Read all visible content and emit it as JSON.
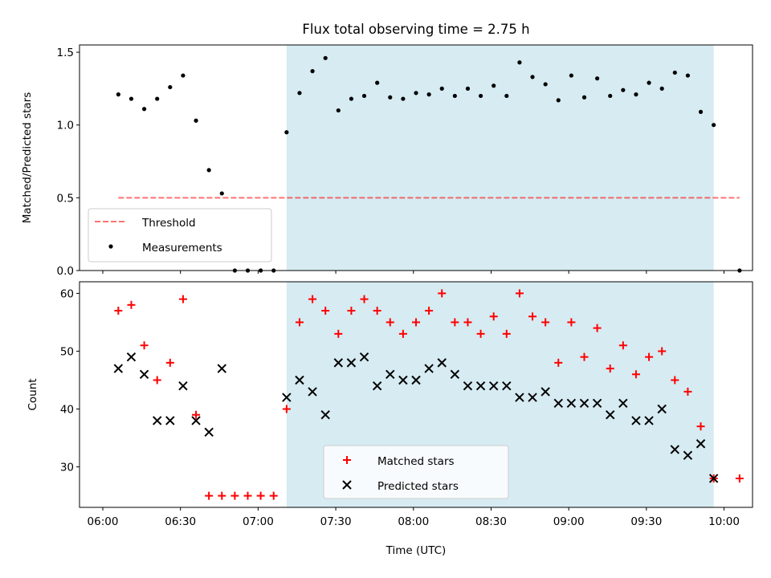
{
  "chart_data": [
    {
      "type": "scatter",
      "title": "Flux total observing time = 2.75 h",
      "xlabel": "",
      "ylabel": "Matched/Predicted stars",
      "xlim": [
        -9,
        251
      ],
      "ylim": [
        0,
        1.55
      ],
      "yticks": [
        0.0,
        0.5,
        1.0,
        1.5
      ],
      "ytick_labels": [
        "0.0",
        "0.5",
        "1.0",
        "1.5"
      ],
      "shaded_region": {
        "x": [
          71,
          236
        ],
        "color": "#add8e6"
      },
      "threshold": {
        "name": "Threshold",
        "value": 0.5,
        "x": [
          6,
          246
        ],
        "color": "#ff0000"
      },
      "series": [
        {
          "name": "Measurements",
          "marker": "dot",
          "color": "#000000",
          "x": [
            6,
            11,
            16,
            21,
            26,
            31,
            36,
            41,
            46,
            51,
            56,
            61,
            66,
            71,
            76,
            81,
            86,
            91,
            96,
            101,
            106,
            111,
            116,
            121,
            126,
            131,
            136,
            141,
            146,
            151,
            156,
            161,
            166,
            171,
            176,
            181,
            186,
            191,
            196,
            201,
            206,
            211,
            216,
            221,
            226,
            231,
            236,
            246
          ],
          "y": [
            1.21,
            1.18,
            1.11,
            1.18,
            1.26,
            1.34,
            1.03,
            0.69,
            0.53,
            0,
            0,
            0,
            0,
            0.95,
            1.22,
            1.37,
            1.46,
            1.1,
            1.18,
            1.2,
            1.29,
            1.19,
            1.18,
            1.22,
            1.21,
            1.25,
            1.2,
            1.25,
            1.2,
            1.27,
            1.2,
            1.43,
            1.33,
            1.28,
            1.17,
            1.34,
            1.19,
            1.32,
            1.2,
            1.24,
            1.21,
            1.29,
            1.25,
            1.36,
            1.34,
            1.09,
            1.0,
            0
          ]
        }
      ],
      "legend": {
        "entries": [
          "Threshold",
          "Measurements"
        ],
        "placement": "lower-left"
      }
    },
    {
      "type": "scatter",
      "title": "",
      "xlabel": "Time (UTC)",
      "ylabel": "Count",
      "xlim": [
        -9,
        251
      ],
      "ylim": [
        23,
        62
      ],
      "yticks": [
        30,
        40,
        50,
        60
      ],
      "ytick_labels": [
        "30",
        "40",
        "50",
        "60"
      ],
      "xticks": [
        0,
        30,
        60,
        90,
        120,
        150,
        180,
        210,
        240
      ],
      "xtick_labels": [
        "06:00",
        "06:30",
        "07:00",
        "07:30",
        "08:00",
        "08:30",
        "09:00",
        "09:30",
        "10:00"
      ],
      "shaded_region": {
        "x": [
          71,
          236
        ],
        "color": "#add8e6"
      },
      "series": [
        {
          "name": "Matched stars",
          "marker": "plus",
          "color": "#ff0000",
          "x": [
            6,
            11,
            16,
            21,
            26,
            31,
            36,
            41,
            46,
            51,
            56,
            61,
            66,
            71,
            76,
            81,
            86,
            91,
            96,
            101,
            106,
            111,
            116,
            121,
            126,
            131,
            136,
            141,
            146,
            151,
            156,
            161,
            166,
            171,
            176,
            181,
            186,
            191,
            196,
            201,
            206,
            211,
            216,
            221,
            226,
            231,
            236,
            246
          ],
          "y": [
            57,
            58,
            51,
            45,
            48,
            59,
            39,
            25,
            25,
            25,
            25,
            25,
            25,
            40,
            55,
            59,
            57,
            53,
            57,
            59,
            57,
            55,
            53,
            55,
            57,
            60,
            55,
            55,
            53,
            56,
            53,
            60,
            56,
            55,
            48,
            55,
            49,
            54,
            47,
            51,
            46,
            49,
            50,
            45,
            43,
            37,
            28,
            28
          ]
        },
        {
          "name": "Predicted stars",
          "marker": "x",
          "color": "#000000",
          "x": [
            6,
            11,
            16,
            21,
            26,
            31,
            36,
            41,
            46,
            71,
            76,
            81,
            86,
            91,
            96,
            101,
            106,
            111,
            116,
            121,
            126,
            131,
            136,
            141,
            146,
            151,
            156,
            161,
            166,
            171,
            176,
            181,
            186,
            191,
            196,
            201,
            206,
            211,
            216,
            221,
            226,
            231,
            236
          ],
          "y": [
            47,
            49,
            46,
            38,
            38,
            44,
            38,
            36,
            47,
            42,
            45,
            43,
            39,
            48,
            48,
            49,
            44,
            46,
            45,
            45,
            47,
            48,
            46,
            44,
            44,
            44,
            44,
            42,
            42,
            43,
            41,
            41,
            41,
            41,
            39,
            41,
            38,
            38,
            40,
            33,
            32,
            34,
            28
          ]
        }
      ],
      "legend": {
        "entries": [
          "Matched stars",
          "Predicted stars"
        ],
        "placement": "lower-center"
      }
    }
  ]
}
